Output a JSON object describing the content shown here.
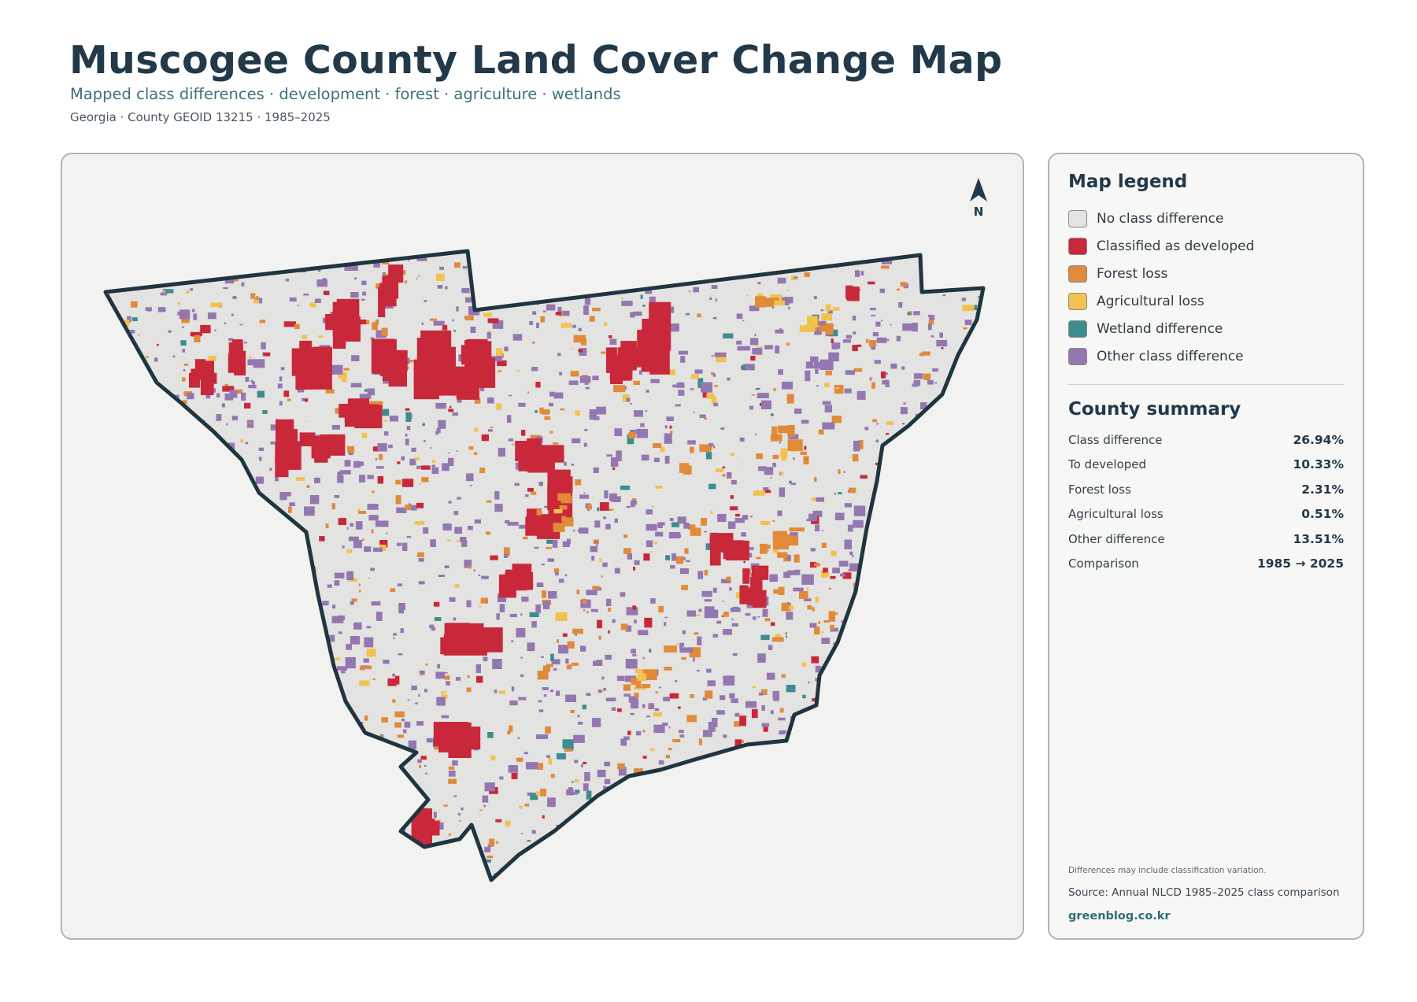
{
  "header": {
    "title": "Muscogee County Land Cover Change Map",
    "subtitle": "Mapped class differences · development · forest · agriculture · wetlands",
    "meta": "Georgia · County GEOID 13215 · 1985–2025"
  },
  "map": {
    "north_label": "N",
    "colors": {
      "background": "#f2f2f0",
      "county_fill": "#e3e3e1",
      "county_outline": "#1f3540"
    }
  },
  "legend": {
    "title": "Map legend",
    "items": [
      {
        "label": "No class difference",
        "color": "#e3e3e1"
      },
      {
        "label": "Classified as developed",
        "color": "#c8283a"
      },
      {
        "label": "Forest loss",
        "color": "#e08a3a"
      },
      {
        "label": "Agricultural loss",
        "color": "#f2c14e"
      },
      {
        "label": "Wetland difference",
        "color": "#3d8c8f"
      },
      {
        "label": "Other class difference",
        "color": "#9477b1"
      }
    ]
  },
  "summary": {
    "title": "County summary",
    "rows": [
      {
        "label": "Class difference",
        "value": "26.94%"
      },
      {
        "label": "To developed",
        "value": "10.33%"
      },
      {
        "label": "Forest loss",
        "value": "2.31%"
      },
      {
        "label": "Agricultural loss",
        "value": "0.51%"
      },
      {
        "label": "Other difference",
        "value": "13.51%"
      },
      {
        "label": "Comparison",
        "value": "1985 → 2025"
      }
    ]
  },
  "footer": {
    "note": "Differences may include classification variation.",
    "source": "Source: Annual NLCD 1985–2025 class comparison",
    "brand": "greenblog.co.kr"
  }
}
